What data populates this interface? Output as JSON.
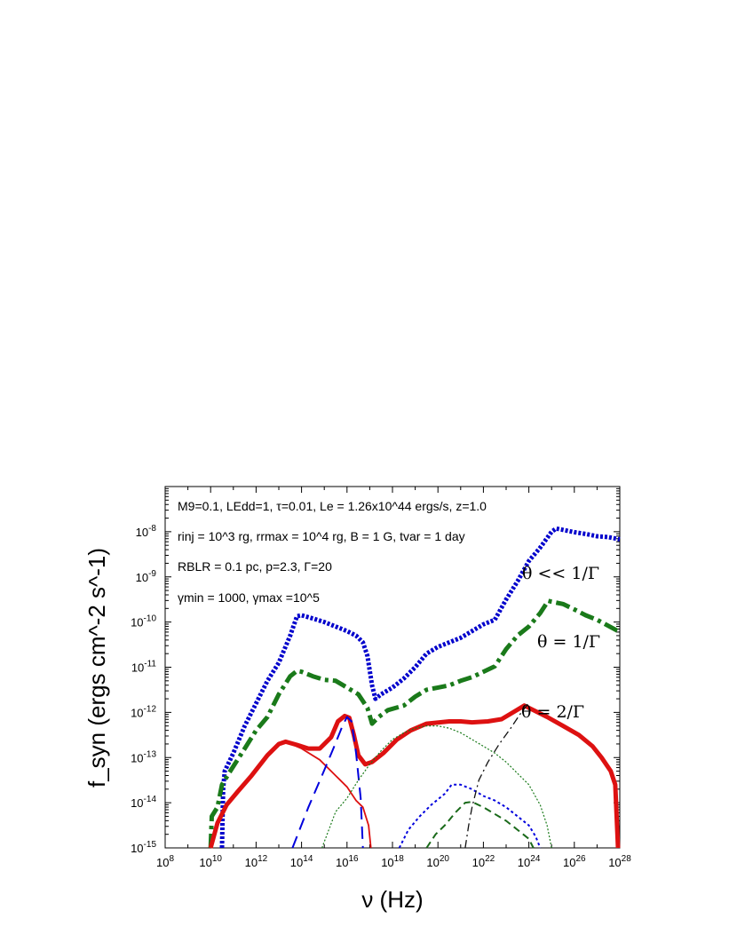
{
  "chart_data": {
    "type": "line",
    "xlabel": "ν (Hz)",
    "ylabel": "f_syn (ergs cm^-2 s^-1)",
    "xscale": "log",
    "yscale": "log",
    "xlim": [
      100000000.0,
      1e+28
    ],
    "ylim": [
      1e-15,
      1e-07
    ],
    "grid": false,
    "x_ticks": [
      8,
      10,
      12,
      14,
      16,
      18,
      20,
      22,
      24,
      26,
      28
    ],
    "y_ticks": [
      -15,
      -14,
      -13,
      -12,
      -11,
      -10,
      -9,
      -8
    ],
    "annotations": [
      "M9=0.1, LEdd=1, τ=0.01, Le = 1.26x10^44 ergs/s, z=1.0",
      "rinj = 10^3 rg, rrmax = 10^4 rg, B = 1 G, tvar = 1 day",
      "RBLR = 0.1 pc, p=2.3, Γ=20",
      "γmin = 1000, γmax =10^5"
    ],
    "curve_labels": [
      "θ << 1/Γ",
      "θ = 1/Γ",
      "θ = 2/Γ"
    ],
    "series": [
      {
        "name": "θ << 1/Γ",
        "color": "#0000cc",
        "style": "thick-dotted",
        "points": [
          [
            10.5,
            -15
          ],
          [
            10.55,
            -13.7
          ],
          [
            10.62,
            -13.3
          ],
          [
            11.0,
            -12.9
          ],
          [
            11.5,
            -12.3
          ],
          [
            12.0,
            -11.8
          ],
          [
            12.5,
            -11.3
          ],
          [
            13.0,
            -10.9
          ],
          [
            13.5,
            -10.3
          ],
          [
            13.8,
            -9.87
          ],
          [
            14.0,
            -9.85
          ],
          [
            14.5,
            -9.92
          ],
          [
            15.0,
            -10.0
          ],
          [
            15.5,
            -10.1
          ],
          [
            16.0,
            -10.2
          ],
          [
            16.4,
            -10.3
          ],
          [
            16.7,
            -10.45
          ],
          [
            16.9,
            -10.75
          ],
          [
            17.1,
            -11.4
          ],
          [
            17.25,
            -11.7
          ],
          [
            17.5,
            -11.6
          ],
          [
            18.0,
            -11.45
          ],
          [
            18.5,
            -11.25
          ],
          [
            19.0,
            -11.0
          ],
          [
            19.5,
            -10.7
          ],
          [
            20.0,
            -10.55
          ],
          [
            20.5,
            -10.45
          ],
          [
            21.0,
            -10.35
          ],
          [
            21.5,
            -10.2
          ],
          [
            22.0,
            -10.05
          ],
          [
            22.5,
            -9.95
          ],
          [
            23.0,
            -9.5
          ],
          [
            23.5,
            -9.1
          ],
          [
            24.0,
            -8.65
          ],
          [
            24.5,
            -8.35
          ],
          [
            25.0,
            -8.0
          ],
          [
            25.2,
            -7.93
          ],
          [
            25.5,
            -7.96
          ],
          [
            26.0,
            -8.01
          ],
          [
            26.5,
            -8.05
          ],
          [
            27.0,
            -8.1
          ],
          [
            27.5,
            -8.12
          ],
          [
            28.0,
            -8.17
          ]
        ]
      },
      {
        "name": "θ = 1/Γ",
        "color": "#1a7a1a",
        "style": "thick-dashdot",
        "points": [
          [
            10.0,
            -15
          ],
          [
            10.05,
            -14.3
          ],
          [
            10.3,
            -14.1
          ],
          [
            10.5,
            -13.6
          ],
          [
            10.8,
            -13.35
          ],
          [
            11.5,
            -12.8
          ],
          [
            12.0,
            -12.4
          ],
          [
            12.5,
            -12.1
          ],
          [
            13.0,
            -11.6
          ],
          [
            13.5,
            -11.2
          ],
          [
            13.8,
            -11.08
          ],
          [
            14.0,
            -11.1
          ],
          [
            14.5,
            -11.2
          ],
          [
            15.0,
            -11.28
          ],
          [
            15.5,
            -11.3
          ],
          [
            16.0,
            -11.45
          ],
          [
            16.5,
            -11.6
          ],
          [
            16.9,
            -11.9
          ],
          [
            17.1,
            -12.25
          ],
          [
            17.4,
            -12.1
          ],
          [
            17.8,
            -11.95
          ],
          [
            18.5,
            -11.85
          ],
          [
            19.0,
            -11.65
          ],
          [
            19.5,
            -11.5
          ],
          [
            20.0,
            -11.45
          ],
          [
            20.5,
            -11.4
          ],
          [
            21.0,
            -11.3
          ],
          [
            21.5,
            -11.22
          ],
          [
            22.0,
            -11.1
          ],
          [
            22.5,
            -10.98
          ],
          [
            23.0,
            -10.6
          ],
          [
            23.5,
            -10.3
          ],
          [
            24.0,
            -10.1
          ],
          [
            24.5,
            -9.8
          ],
          [
            24.85,
            -9.53
          ],
          [
            25.0,
            -9.55
          ],
          [
            25.5,
            -9.6
          ],
          [
            26.0,
            -9.72
          ],
          [
            26.5,
            -9.85
          ],
          [
            27.0,
            -9.95
          ],
          [
            28.0,
            -10.22
          ]
        ]
      },
      {
        "name": "θ = 2/Γ",
        "color": "#dd1111",
        "style": "thick-solid",
        "points": [
          [
            10.0,
            -15
          ],
          [
            10.3,
            -14.45
          ],
          [
            10.7,
            -14.05
          ],
          [
            11.2,
            -13.75
          ],
          [
            11.8,
            -13.4
          ],
          [
            12.5,
            -12.95
          ],
          [
            13.0,
            -12.7
          ],
          [
            13.3,
            -12.65
          ],
          [
            13.8,
            -12.72
          ],
          [
            14.3,
            -12.8
          ],
          [
            14.8,
            -12.8
          ],
          [
            15.3,
            -12.55
          ],
          [
            15.6,
            -12.2
          ],
          [
            15.9,
            -12.08
          ],
          [
            16.1,
            -12.12
          ],
          [
            16.3,
            -12.5
          ],
          [
            16.5,
            -12.95
          ],
          [
            16.8,
            -13.15
          ],
          [
            17.1,
            -13.1
          ],
          [
            17.6,
            -12.9
          ],
          [
            18.2,
            -12.6
          ],
          [
            18.8,
            -12.4
          ],
          [
            19.5,
            -12.25
          ],
          [
            20.5,
            -12.2
          ],
          [
            21.0,
            -12.2
          ],
          [
            21.5,
            -12.22
          ],
          [
            22.2,
            -12.2
          ],
          [
            22.8,
            -12.15
          ],
          [
            23.3,
            -12.0
          ],
          [
            23.8,
            -11.85
          ],
          [
            24.2,
            -11.95
          ],
          [
            24.8,
            -12.1
          ],
          [
            25.5,
            -12.3
          ],
          [
            26.2,
            -12.5
          ],
          [
            26.8,
            -12.75
          ],
          [
            27.2,
            -13.0
          ],
          [
            27.6,
            -13.3
          ],
          [
            27.8,
            -13.6
          ],
          [
            27.92,
            -15
          ]
        ]
      },
      {
        "name": "",
        "color": "#dd1111",
        "style": "thin-solid",
        "points": [
          [
            10.0,
            -15
          ],
          [
            10.3,
            -14.45
          ],
          [
            10.7,
            -14.05
          ],
          [
            11.2,
            -13.75
          ],
          [
            11.8,
            -13.4
          ],
          [
            12.5,
            -12.95
          ],
          [
            13.0,
            -12.7
          ],
          [
            13.3,
            -12.65
          ],
          [
            14.0,
            -12.8
          ],
          [
            14.8,
            -13.05
          ],
          [
            15.5,
            -13.4
          ],
          [
            16.0,
            -13.65
          ],
          [
            16.4,
            -13.95
          ],
          [
            16.7,
            -14.1
          ],
          [
            16.95,
            -14.5
          ],
          [
            17.05,
            -15
          ]
        ]
      },
      {
        "name": "",
        "color": "#0000dd",
        "style": "thin-dashed",
        "points": [
          [
            13.6,
            -15
          ],
          [
            14.3,
            -14.1
          ],
          [
            14.9,
            -13.4
          ],
          [
            15.4,
            -12.8
          ],
          [
            15.8,
            -12.3
          ],
          [
            16.0,
            -12.1
          ],
          [
            16.2,
            -12.2
          ],
          [
            16.4,
            -12.9
          ],
          [
            16.6,
            -13.9
          ],
          [
            16.7,
            -15
          ]
        ]
      },
      {
        "name": "",
        "color": "#1a7a1a",
        "style": "thin-dotted",
        "points": [
          [
            14.9,
            -15
          ],
          [
            15.5,
            -14.2
          ],
          [
            16.0,
            -13.9
          ],
          [
            16.5,
            -13.5
          ],
          [
            17.0,
            -13.15
          ],
          [
            17.5,
            -12.85
          ],
          [
            18.0,
            -12.6
          ],
          [
            18.5,
            -12.45
          ],
          [
            19.0,
            -12.35
          ],
          [
            19.5,
            -12.3
          ],
          [
            20.0,
            -12.3
          ],
          [
            20.5,
            -12.35
          ],
          [
            21.0,
            -12.45
          ],
          [
            21.5,
            -12.6
          ],
          [
            22.0,
            -12.75
          ],
          [
            22.5,
            -12.9
          ],
          [
            23.0,
            -13.1
          ],
          [
            23.5,
            -13.35
          ],
          [
            24.0,
            -13.6
          ],
          [
            24.5,
            -14.05
          ],
          [
            24.8,
            -14.5
          ],
          [
            25.0,
            -15
          ]
        ]
      },
      {
        "name": "",
        "color": "#0000dd",
        "style": "thin-dotted2",
        "points": [
          [
            18.3,
            -15
          ],
          [
            18.7,
            -14.6
          ],
          [
            19.2,
            -14.3
          ],
          [
            19.7,
            -14.05
          ],
          [
            20.3,
            -13.8
          ],
          [
            20.6,
            -13.6
          ],
          [
            21.0,
            -13.6
          ],
          [
            21.5,
            -13.7
          ],
          [
            22.0,
            -13.85
          ],
          [
            22.5,
            -13.95
          ],
          [
            23.0,
            -14.1
          ],
          [
            23.5,
            -14.3
          ],
          [
            24.0,
            -14.5
          ],
          [
            24.3,
            -14.75
          ],
          [
            24.5,
            -15
          ]
        ]
      },
      {
        "name": "",
        "color": "#1a6a1a",
        "style": "thin-dashed2",
        "points": [
          [
            19.5,
            -15
          ],
          [
            19.9,
            -14.7
          ],
          [
            20.3,
            -14.5
          ],
          [
            20.8,
            -14.2
          ],
          [
            21.2,
            -14.0
          ],
          [
            21.5,
            -13.98
          ],
          [
            22.0,
            -14.1
          ],
          [
            22.5,
            -14.25
          ],
          [
            23.0,
            -14.4
          ],
          [
            23.5,
            -14.6
          ],
          [
            24.0,
            -14.8
          ],
          [
            24.2,
            -15
          ]
        ]
      },
      {
        "name": "",
        "color": "#111111",
        "style": "thin-dashdot",
        "points": [
          [
            21.2,
            -15
          ],
          [
            21.35,
            -14.5
          ],
          [
            21.5,
            -14.1
          ],
          [
            21.8,
            -13.5
          ],
          [
            22.2,
            -13.1
          ],
          [
            22.7,
            -12.7
          ],
          [
            23.2,
            -12.35
          ],
          [
            23.6,
            -12.05
          ],
          [
            23.95,
            -11.82
          ]
        ]
      }
    ]
  }
}
